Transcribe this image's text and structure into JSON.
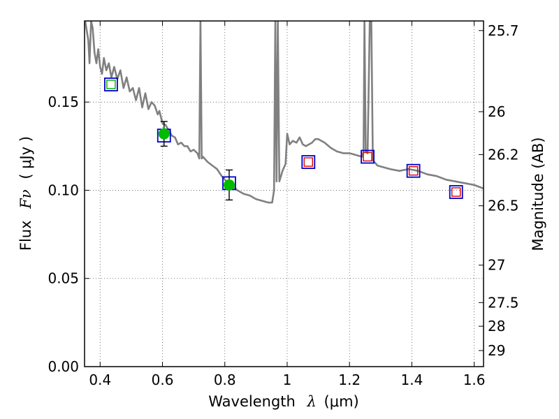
{
  "chart_data": {
    "type": "scatter",
    "xlabel": "Wavelength",
    "xlabel_symbol": "λ",
    "xlabel_unit": "(μm)",
    "ylabel": "Flux",
    "ylabel_symbol": "Fν",
    "ylabel_unit": "( μJy )",
    "y2label": "Magnitude (AB)",
    "xlim": [
      0.35,
      1.63
    ],
    "ylim": [
      0.0,
      0.196
    ],
    "x_ticks": [
      {
        "value": 0.4,
        "label": "0.4"
      },
      {
        "value": 0.6,
        "label": "0.6"
      },
      {
        "value": 0.8,
        "label": "0.8"
      },
      {
        "value": 1.0,
        "label": "1"
      },
      {
        "value": 1.2,
        "label": "1.2"
      },
      {
        "value": 1.4,
        "label": "1.4"
      },
      {
        "value": 1.6,
        "label": "1.6"
      }
    ],
    "y_ticks": [
      {
        "value": 0.0,
        "label": "0.00"
      },
      {
        "value": 0.05,
        "label": "0.05"
      },
      {
        "value": 0.1,
        "label": "0.10"
      },
      {
        "value": 0.15,
        "label": "0.15"
      }
    ],
    "mag_ticks": [
      {
        "value": 25.7,
        "label": "25.7"
      },
      {
        "value": 26.0,
        "label": "26"
      },
      {
        "value": 26.2,
        "label": "26.2"
      },
      {
        "value": 26.5,
        "label": "26.5"
      },
      {
        "value": 27.0,
        "label": "27"
      },
      {
        "value": 27.5,
        "label": "27.5"
      },
      {
        "value": 28.0,
        "label": "28"
      },
      {
        "value": 29.0,
        "label": "29"
      }
    ],
    "grid": true,
    "series": [
      {
        "name": "model-spectrum",
        "kind": "line",
        "color": "#808080",
        "points": [
          [
            0.352,
            0.196
          ],
          [
            0.362,
            0.185
          ],
          [
            0.366,
            0.172
          ],
          [
            0.371,
            0.196
          ],
          [
            0.376,
            0.192
          ],
          [
            0.382,
            0.178
          ],
          [
            0.388,
            0.172
          ],
          [
            0.394,
            0.18
          ],
          [
            0.4,
            0.17
          ],
          [
            0.406,
            0.166
          ],
          [
            0.412,
            0.175
          ],
          [
            0.42,
            0.168
          ],
          [
            0.428,
            0.172
          ],
          [
            0.436,
            0.164
          ],
          [
            0.445,
            0.17
          ],
          [
            0.455,
            0.163
          ],
          [
            0.465,
            0.168
          ],
          [
            0.475,
            0.158
          ],
          [
            0.485,
            0.164
          ],
          [
            0.495,
            0.156
          ],
          [
            0.505,
            0.158
          ],
          [
            0.515,
            0.151
          ],
          [
            0.525,
            0.158
          ],
          [
            0.535,
            0.147
          ],
          [
            0.545,
            0.155
          ],
          [
            0.555,
            0.146
          ],
          [
            0.565,
            0.15
          ],
          [
            0.575,
            0.148
          ],
          [
            0.585,
            0.143
          ],
          [
            0.59,
            0.145
          ],
          [
            0.6,
            0.138
          ],
          [
            0.61,
            0.137
          ],
          [
            0.62,
            0.134
          ],
          [
            0.63,
            0.131
          ],
          [
            0.64,
            0.13
          ],
          [
            0.65,
            0.126
          ],
          [
            0.66,
            0.127
          ],
          [
            0.67,
            0.125
          ],
          [
            0.68,
            0.125
          ],
          [
            0.69,
            0.122
          ],
          [
            0.7,
            0.123
          ],
          [
            0.712,
            0.121
          ],
          [
            0.718,
            0.118
          ],
          [
            0.722,
            0.196
          ],
          [
            0.726,
            0.118
          ],
          [
            0.73,
            0.119
          ],
          [
            0.745,
            0.116
          ],
          [
            0.76,
            0.114
          ],
          [
            0.775,
            0.112
          ],
          [
            0.79,
            0.108
          ],
          [
            0.805,
            0.105
          ],
          [
            0.82,
            0.103
          ],
          [
            0.84,
            0.1
          ],
          [
            0.86,
            0.098
          ],
          [
            0.88,
            0.097
          ],
          [
            0.9,
            0.095
          ],
          [
            0.92,
            0.094
          ],
          [
            0.94,
            0.093
          ],
          [
            0.952,
            0.093
          ],
          [
            0.958,
            0.1
          ],
          [
            0.962,
            0.196
          ],
          [
            0.966,
            0.105
          ],
          [
            0.97,
            0.196
          ],
          [
            0.975,
            0.105
          ],
          [
            0.985,
            0.111
          ],
          [
            0.995,
            0.115
          ],
          [
            1.0,
            0.132
          ],
          [
            1.008,
            0.126
          ],
          [
            1.018,
            0.128
          ],
          [
            1.03,
            0.127
          ],
          [
            1.04,
            0.13
          ],
          [
            1.05,
            0.126
          ],
          [
            1.06,
            0.125
          ],
          [
            1.07,
            0.126
          ],
          [
            1.08,
            0.127
          ],
          [
            1.09,
            0.129
          ],
          [
            1.1,
            0.129
          ],
          [
            1.11,
            0.128
          ],
          [
            1.12,
            0.127
          ],
          [
            1.14,
            0.124
          ],
          [
            1.16,
            0.122
          ],
          [
            1.18,
            0.121
          ],
          [
            1.2,
            0.121
          ],
          [
            1.22,
            0.12
          ],
          [
            1.24,
            0.119
          ],
          [
            1.245,
            0.122
          ],
          [
            1.248,
            0.196
          ],
          [
            1.252,
            0.122
          ],
          [
            1.258,
            0.121
          ],
          [
            1.265,
            0.196
          ],
          [
            1.27,
            0.196
          ],
          [
            1.275,
            0.117
          ],
          [
            1.29,
            0.114
          ],
          [
            1.31,
            0.113
          ],
          [
            1.33,
            0.112
          ],
          [
            1.36,
            0.111
          ],
          [
            1.39,
            0.112
          ],
          [
            1.42,
            0.111
          ],
          [
            1.45,
            0.109
          ],
          [
            1.48,
            0.108
          ],
          [
            1.51,
            0.106
          ],
          [
            1.54,
            0.105
          ],
          [
            1.57,
            0.104
          ],
          [
            1.6,
            0.103
          ],
          [
            1.63,
            0.101
          ]
        ]
      },
      {
        "name": "model-photometry",
        "kind": "open-square",
        "color": "#0000cc",
        "points": [
          [
            0.435,
            0.16
          ],
          [
            0.605,
            0.131
          ],
          [
            0.814,
            0.104
          ],
          [
            1.068,
            0.116
          ],
          [
            1.258,
            0.119
          ],
          [
            1.405,
            0.111
          ],
          [
            1.542,
            0.099
          ]
        ]
      },
      {
        "name": "observed-photometry",
        "kind": "open-square-small",
        "color": "#00aa00",
        "points": [
          [
            0.435,
            0.16
          ]
        ]
      },
      {
        "name": "observed-detections",
        "kind": "filled-circle",
        "color": "#00bb00",
        "points": [
          [
            0.605,
            0.132,
            0.007
          ],
          [
            0.814,
            0.103,
            0.0085
          ]
        ]
      },
      {
        "name": "upper-limits",
        "kind": "open-square-small",
        "color": "#dd0000",
        "points": [
          [
            1.068,
            0.116
          ],
          [
            1.258,
            0.119
          ],
          [
            1.405,
            0.111
          ],
          [
            1.542,
            0.099
          ]
        ]
      }
    ]
  }
}
